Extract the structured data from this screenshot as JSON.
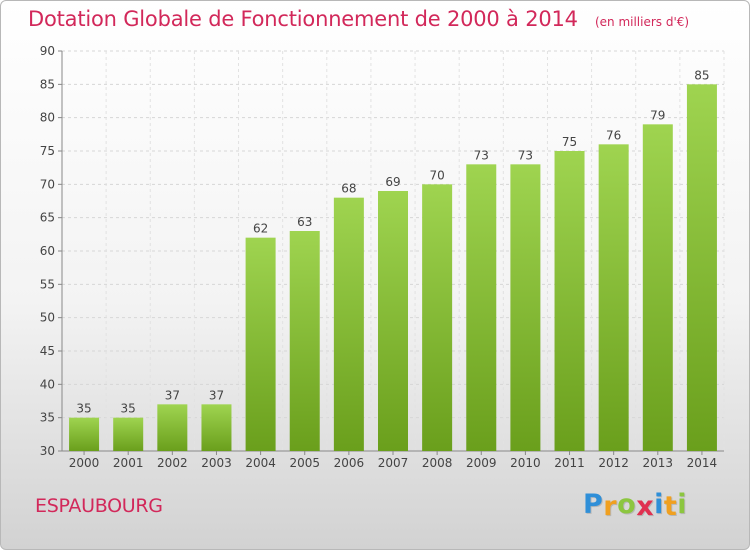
{
  "chart_data": {
    "type": "bar",
    "title": "Dotation Globale de Fonctionnement de 2000 à 2014",
    "subtitle": "(en milliers d'€)",
    "categories": [
      "2000",
      "2001",
      "2002",
      "2003",
      "2004",
      "2005",
      "2006",
      "2007",
      "2008",
      "2009",
      "2010",
      "2011",
      "2012",
      "2013",
      "2014"
    ],
    "values": [
      35,
      35,
      37,
      37,
      62,
      63,
      68,
      69,
      70,
      73,
      73,
      75,
      76,
      79,
      85
    ],
    "ylim": [
      30,
      90
    ],
    "yticks": [
      30,
      35,
      40,
      45,
      50,
      55,
      60,
      65,
      70,
      75,
      80,
      85,
      90
    ],
    "grid": true,
    "data_labels": true,
    "bar_color": "#8cc63f"
  },
  "commune": "ESPAUBOURG",
  "brand": {
    "name": "Proxiti",
    "letters": [
      {
        "ch": "P",
        "color": "#2f8fd8"
      },
      {
        "ch": "r",
        "color": "#f0a020"
      },
      {
        "ch": "o",
        "color": "#8cc63f"
      },
      {
        "ch": "x",
        "color": "#e03050"
      },
      {
        "ch": "i",
        "color": "#2f8fd8"
      },
      {
        "ch": "t",
        "color": "#f0a020"
      },
      {
        "ch": "i",
        "color": "#8cc63f"
      }
    ]
  },
  "colors": {
    "accent": "#d2285a"
  }
}
